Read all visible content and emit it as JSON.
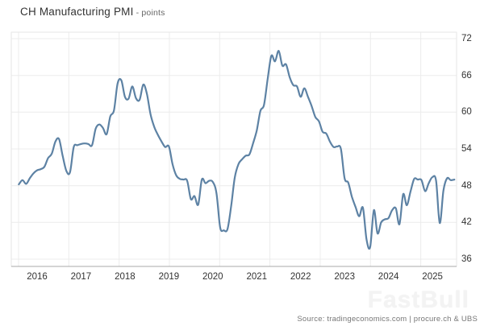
{
  "header": {
    "title": "CH Manufacturing PMI",
    "subtitle": "- points"
  },
  "chart_data": {
    "type": "line",
    "title": "CH Manufacturing PMI",
    "unit": "points",
    "legend": "none",
    "grid": "on",
    "start_month": "2015-08",
    "end_month": "2025-07",
    "x_tick_labels": [
      "2016",
      "2017",
      "2018",
      "2019",
      "2020",
      "2021",
      "2022",
      "2023",
      "2024",
      "2025"
    ],
    "y_ticks": [
      72,
      66,
      60,
      54,
      48,
      42,
      36
    ],
    "y_axis_side": "right",
    "ylim": [
      34.8,
      73.1
    ],
    "line_color": "#5d82a4",
    "series": [
      {
        "name": "CH Manufacturing PMI",
        "frequency": "monthly",
        "monthly_values": [
          48.2,
          48.9,
          48.3,
          49.2,
          50.0,
          50.5,
          50.7,
          51.1,
          52.5,
          53.2,
          55.2,
          55.6,
          52.8,
          50.4,
          50.2,
          54.3,
          54.6,
          54.8,
          54.9,
          54.8,
          54.6,
          57.3,
          58.0,
          57.4,
          56.4,
          59.3,
          60.3,
          64.7,
          65.2,
          62.5,
          62.2,
          64.2,
          62.3,
          62.0,
          64.5,
          63.0,
          59.6,
          57.6,
          56.3,
          55.2,
          54.3,
          54.4,
          51.5,
          49.7,
          49.1,
          49.0,
          48.8,
          45.8,
          46.3,
          44.9,
          49.0,
          48.4,
          48.8,
          48.6,
          46.8,
          41.2,
          40.7,
          40.9,
          44.6,
          49.3,
          51.5,
          52.3,
          52.9,
          53.1,
          54.9,
          57.0,
          60.2,
          61.2,
          65.5,
          69.2,
          68.3,
          70.0,
          67.6,
          67.8,
          65.7,
          64.4,
          64.2,
          62.5,
          63.9,
          62.5,
          61.0,
          59.2,
          58.5,
          56.8,
          56.5,
          55.2,
          54.3,
          54.4,
          54.0,
          49.2,
          48.5,
          46.2,
          44.5,
          43.0,
          44.4,
          39.2,
          38.0,
          44.0,
          40.2,
          42.0,
          42.5,
          42.7,
          44.0,
          44.3,
          41.7,
          46.6,
          44.8,
          47.0,
          49.1,
          49.0,
          48.9,
          47.1,
          48.4,
          49.4,
          48.8,
          41.9,
          47.2,
          49.2,
          48.9,
          49.0
        ]
      }
    ]
  },
  "watermark": {
    "text": "FastBull"
  },
  "footer": {
    "source": "Source: tradingeconomics.com | procure.ch & UBS"
  }
}
